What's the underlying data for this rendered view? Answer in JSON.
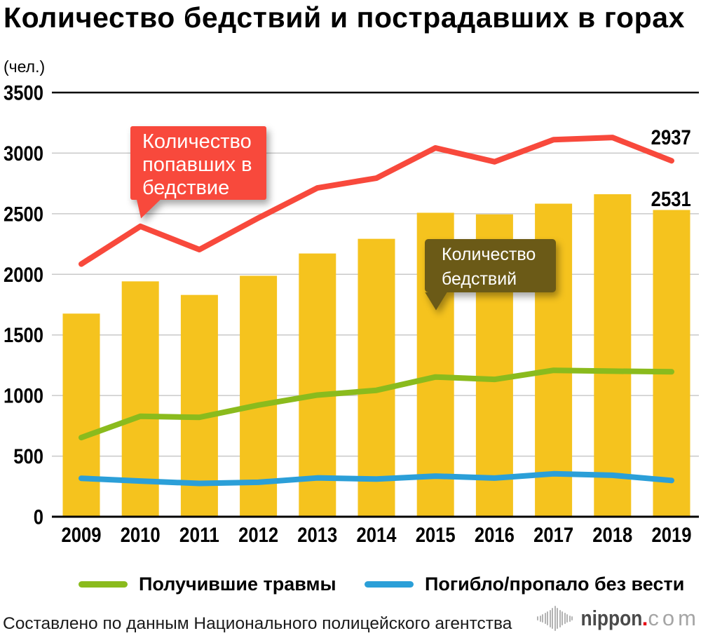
{
  "title": "Количество бедствий и пострадавших в горах",
  "y_axis_unit": "(чел.)",
  "callouts": {
    "people_in_distress": {
      "lines": [
        "Количество",
        "попавших в",
        "бедствие"
      ],
      "color": "#F8493C"
    },
    "disasters": {
      "lines": [
        "Количество",
        "бедствий"
      ],
      "color": "#6B5A17"
    }
  },
  "legend": [
    {
      "label": "Получившие травмы",
      "color": "#8ABB1D"
    },
    {
      "label": "Погибло/пропало без вести",
      "color": "#2B9FD8"
    }
  ],
  "footer": {
    "source": "Составлено по данным Национального полицейского агентства",
    "logo_name": "nippon",
    "logo_dot": ".",
    "logo_tld": "com"
  },
  "chart_data": {
    "type": "combo-bar-line",
    "title": "Количество бедствий и пострадавших в горах",
    "ylabel": "(чел.)",
    "ylim": [
      0,
      3500
    ],
    "ytick_step": 500,
    "grid": true,
    "categories": [
      "2009",
      "2010",
      "2011",
      "2012",
      "2013",
      "2014",
      "2015",
      "2016",
      "2017",
      "2018",
      "2019"
    ],
    "bar_series": {
      "name": "Количество бедствий",
      "color": "#F5C31E",
      "values": [
        1676,
        1942,
        1830,
        1988,
        2172,
        2293,
        2508,
        2495,
        2583,
        2661,
        2531
      ]
    },
    "line_series": [
      {
        "name": "Количество попавших в бедствие",
        "color": "#F8493C",
        "values": [
          2085,
          2396,
          2204,
          2465,
          2713,
          2794,
          3043,
          2929,
          3111,
          3129,
          2937
        ]
      },
      {
        "name": "Получившие травмы",
        "color": "#8ABB1D",
        "values": [
          653,
          829,
          820,
          921,
          1004,
          1043,
          1153,
          1133,
          1208,
          1201,
          1196
        ]
      },
      {
        "name": "Погибло/пропало без вести",
        "color": "#2B9FD8",
        "values": [
          317,
          294,
          275,
          284,
          320,
          311,
          335,
          319,
          354,
          342,
          299
        ]
      }
    ],
    "annotations": [
      {
        "text": "2937",
        "attach": "line Количество попавших в бедствие 2019"
      },
      {
        "text": "2531",
        "attach": "bar Количество бедствий 2019"
      }
    ]
  }
}
